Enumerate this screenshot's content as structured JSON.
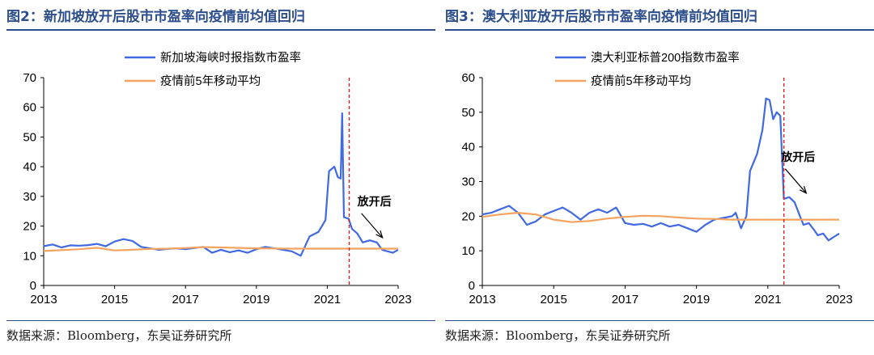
{
  "colors": {
    "title": "#2d4e8c",
    "pe_line": "#4169e1",
    "avg_line": "#f4a460",
    "reopen_line": "#e02020"
  },
  "figures": [
    {
      "title": "图2：新加坡放开后股市市盈率向疫情前均值回归",
      "source": "数据来源：Bloomberg，东吴证券研究所"
    },
    {
      "title": "图3：澳大利亚放开后股市市盈率向疫情前均值回归",
      "source": "数据来源：Bloomberg，东吴证券研究所"
    }
  ],
  "chart_data": [
    {
      "type": "line",
      "title": "",
      "xlabel": "",
      "ylabel": "",
      "xlim": [
        2013,
        2023
      ],
      "ylim": [
        0,
        70
      ],
      "yticks": [
        0,
        10,
        20,
        30,
        40,
        50,
        60,
        70
      ],
      "xticks": [
        "2013",
        "2015",
        "2017",
        "2019",
        "2021",
        "2023"
      ],
      "grid": false,
      "legend": "top-center",
      "annotation": {
        "text": "放开后",
        "x": 2022.33,
        "y": 27
      },
      "reopen_x": 2021.62,
      "series": [
        {
          "name": "新加坡海峡时报指数市盈率",
          "color": "#4169e1",
          "points": [
            [
              2013.0,
              13.2
            ],
            [
              2013.25,
              13.8
            ],
            [
              2013.5,
              12.8
            ],
            [
              2013.75,
              13.5
            ],
            [
              2014.0,
              13.4
            ],
            [
              2014.25,
              13.6
            ],
            [
              2014.5,
              14.0
            ],
            [
              2014.75,
              13.2
            ],
            [
              2015.0,
              14.8
            ],
            [
              2015.25,
              15.6
            ],
            [
              2015.5,
              15.0
            ],
            [
              2015.75,
              13.0
            ],
            [
              2016.0,
              12.5
            ],
            [
              2016.25,
              12.0
            ],
            [
              2016.5,
              12.3
            ],
            [
              2016.75,
              12.5
            ],
            [
              2017.0,
              12.2
            ],
            [
              2017.25,
              12.6
            ],
            [
              2017.5,
              13.0
            ],
            [
              2017.75,
              11.0
            ],
            [
              2018.0,
              12.0
            ],
            [
              2018.25,
              11.2
            ],
            [
              2018.5,
              11.8
            ],
            [
              2018.75,
              11.0
            ],
            [
              2019.0,
              12.2
            ],
            [
              2019.25,
              13.0
            ],
            [
              2019.5,
              12.5
            ],
            [
              2019.75,
              12.0
            ],
            [
              2020.0,
              11.5
            ],
            [
              2020.25,
              10.0
            ],
            [
              2020.5,
              16.5
            ],
            [
              2020.75,
              18.0
            ],
            [
              2020.95,
              22.0
            ],
            [
              2021.05,
              38.5
            ],
            [
              2021.2,
              40.0
            ],
            [
              2021.3,
              36.5
            ],
            [
              2021.38,
              36.0
            ],
            [
              2021.42,
              58.0
            ],
            [
              2021.47,
              23.0
            ],
            [
              2021.6,
              22.5
            ],
            [
              2021.7,
              19.0
            ],
            [
              2021.85,
              17.5
            ],
            [
              2022.0,
              14.5
            ],
            [
              2022.2,
              15.2
            ],
            [
              2022.4,
              14.5
            ],
            [
              2022.55,
              12.0
            ],
            [
              2022.7,
              11.5
            ],
            [
              2022.85,
              11.0
            ],
            [
              2023.0,
              12.0
            ]
          ]
        },
        {
          "name": "疫情前5年移动平均",
          "color": "#f4a460",
          "points": [
            [
              2013.0,
              11.6
            ],
            [
              2014.0,
              12.2
            ],
            [
              2014.5,
              12.7
            ],
            [
              2015.0,
              11.8
            ],
            [
              2015.5,
              12.0
            ],
            [
              2016.0,
              12.3
            ],
            [
              2016.5,
              12.4
            ],
            [
              2017.0,
              12.6
            ],
            [
              2017.5,
              12.9
            ],
            [
              2018.0,
              12.8
            ],
            [
              2019.0,
              12.5
            ],
            [
              2020.0,
              12.4
            ],
            [
              2023.0,
              12.4
            ]
          ]
        }
      ]
    },
    {
      "type": "line",
      "title": "",
      "xlabel": "",
      "ylabel": "",
      "xlim": [
        2013,
        2023
      ],
      "ylim": [
        0,
        60
      ],
      "yticks": [
        0,
        10,
        20,
        30,
        40,
        50,
        60
      ],
      "xticks": [
        "2013",
        "2015",
        "2017",
        "2019",
        "2021",
        "2023"
      ],
      "grid": false,
      "legend": "top-center",
      "annotation": {
        "text": "放开后",
        "x": 2021.85,
        "y": 36
      },
      "reopen_x": 2021.45,
      "series": [
        {
          "name": "澳大利亚标普200指数市盈率",
          "color": "#4169e1",
          "points": [
            [
              2013.0,
              20.5
            ],
            [
              2013.25,
              21.0
            ],
            [
              2013.5,
              22.0
            ],
            [
              2013.75,
              23.0
            ],
            [
              2014.0,
              21.0
            ],
            [
              2014.25,
              17.5
            ],
            [
              2014.5,
              18.5
            ],
            [
              2014.75,
              20.5
            ],
            [
              2015.0,
              21.5
            ],
            [
              2015.25,
              22.5
            ],
            [
              2015.5,
              21.0
            ],
            [
              2015.75,
              19.0
            ],
            [
              2016.0,
              21.0
            ],
            [
              2016.25,
              22.0
            ],
            [
              2016.5,
              21.0
            ],
            [
              2016.75,
              22.5
            ],
            [
              2017.0,
              18.0
            ],
            [
              2017.25,
              17.5
            ],
            [
              2017.5,
              17.8
            ],
            [
              2017.75,
              17.0
            ],
            [
              2018.0,
              18.0
            ],
            [
              2018.25,
              17.0
            ],
            [
              2018.5,
              17.5
            ],
            [
              2018.75,
              16.5
            ],
            [
              2019.0,
              15.5
            ],
            [
              2019.25,
              17.5
            ],
            [
              2019.5,
              19.0
            ],
            [
              2019.75,
              19.5
            ],
            [
              2020.0,
              20.0
            ],
            [
              2020.1,
              21.0
            ],
            [
              2020.25,
              16.5
            ],
            [
              2020.4,
              20.0
            ],
            [
              2020.5,
              33.0
            ],
            [
              2020.7,
              38.0
            ],
            [
              2020.85,
              45.0
            ],
            [
              2020.95,
              54.0
            ],
            [
              2021.05,
              53.5
            ],
            [
              2021.15,
              48.0
            ],
            [
              2021.25,
              50.0
            ],
            [
              2021.35,
              49.0
            ],
            [
              2021.45,
              25.0
            ],
            [
              2021.6,
              25.5
            ],
            [
              2021.75,
              24.0
            ],
            [
              2021.9,
              20.0
            ],
            [
              2022.0,
              17.5
            ],
            [
              2022.15,
              18.0
            ],
            [
              2022.3,
              16.0
            ],
            [
              2022.4,
              14.5
            ],
            [
              2022.55,
              15.0
            ],
            [
              2022.7,
              13.0
            ],
            [
              2022.85,
              14.0
            ],
            [
              2023.0,
              15.0
            ]
          ]
        },
        {
          "name": "疫情前5年移动平均",
          "color": "#f4a460",
          "points": [
            [
              2013.0,
              19.8
            ],
            [
              2013.5,
              20.5
            ],
            [
              2014.0,
              21.0
            ],
            [
              2014.5,
              20.5
            ],
            [
              2015.0,
              19.0
            ],
            [
              2015.5,
              18.3
            ],
            [
              2016.0,
              18.6
            ],
            [
              2016.5,
              19.3
            ],
            [
              2017.0,
              19.8
            ],
            [
              2017.5,
              20.1
            ],
            [
              2018.0,
              20.0
            ],
            [
              2018.5,
              19.6
            ],
            [
              2019.0,
              19.3
            ],
            [
              2019.5,
              19.2
            ],
            [
              2020.0,
              19.0
            ],
            [
              2023.0,
              19.0
            ]
          ]
        }
      ]
    }
  ]
}
